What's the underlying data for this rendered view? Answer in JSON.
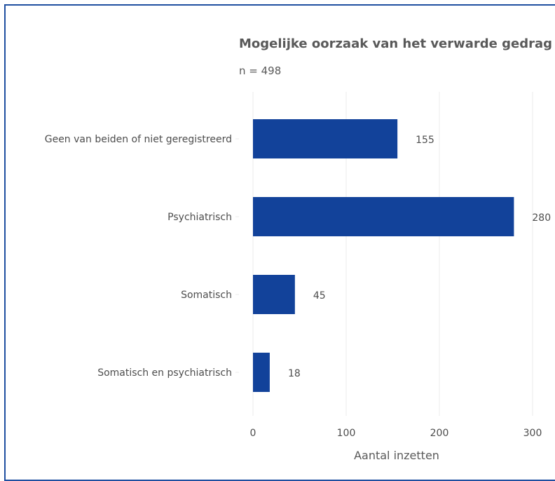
{
  "chart_data": {
    "type": "bar",
    "orientation": "horizontal",
    "title": "Mogelijke oorzaak van het verwarde gedrag",
    "subtitle": "n = 498",
    "categories": [
      "Geen van beiden of niet geregistreerd",
      "Psychiatrisch",
      "Somatisch",
      "Somatisch en psychiatrisch"
    ],
    "values": [
      155,
      280,
      45,
      18
    ],
    "data_labels": [
      "155",
      "280",
      "45",
      "18"
    ],
    "xlabel": "Aantal inzetten",
    "ylabel": "",
    "xlim": [
      0,
      300
    ],
    "xticks": [
      0,
      100,
      200,
      300
    ],
    "xtick_labels": [
      "0",
      "100",
      "200",
      "300"
    ],
    "grid": true,
    "colors": {
      "bar": "#12429a",
      "grid": "#ebebeb",
      "frame": "#1f4fa0"
    }
  }
}
